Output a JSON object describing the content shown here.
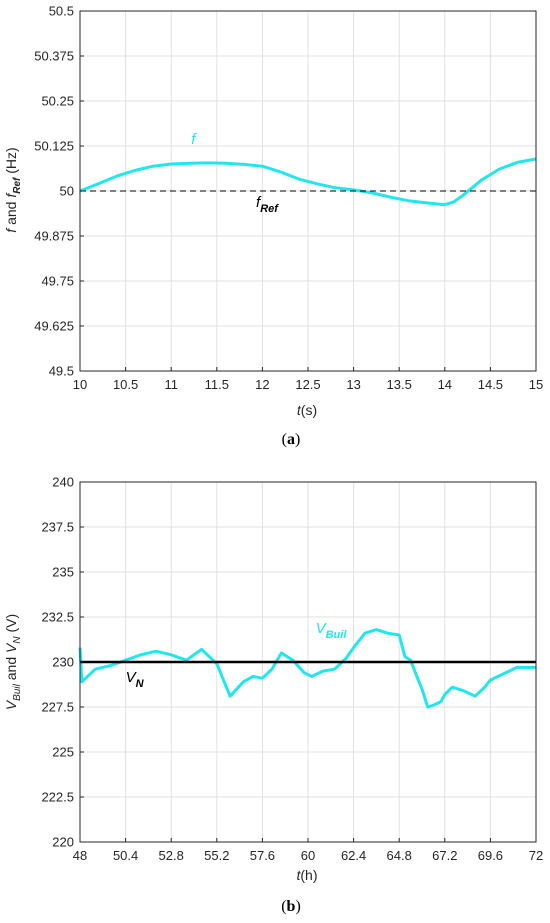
{
  "colors": {
    "cyan": "#22e6ee",
    "black": "#000000",
    "grid": "#e0e0e0",
    "axis": "#262626"
  },
  "chart_data": [
    {
      "type": "line",
      "caption": {
        "open": "(",
        "letter": "a",
        "close": ")"
      },
      "xlabel": {
        "var": "t",
        "unit": "(s)"
      },
      "ylabel": {
        "p1": "f",
        "p2": " and ",
        "p3": "f",
        "sub": "Ref",
        "p4": " (Hz)"
      },
      "xlim": [
        10,
        15
      ],
      "ylim": [
        49.5,
        50.5
      ],
      "xticks": [
        10,
        10.5,
        11,
        11.5,
        12,
        12.5,
        13,
        13.5,
        14,
        14.5,
        15
      ],
      "xtick_labels": [
        "10",
        "10.5",
        "11",
        "11.5",
        "12",
        "12.5",
        "13",
        "13.5",
        "14",
        "14.5",
        "15"
      ],
      "yticks": [
        49.5,
        49.625,
        49.75,
        49.875,
        50,
        50.125,
        50.25,
        50.375,
        50.5
      ],
      "ytick_labels": [
        "49.5",
        "49.625",
        "49.75",
        "49.875",
        "50",
        "50.125",
        "50.25",
        "50.375",
        "50.5"
      ],
      "grid": true,
      "series": [
        {
          "name": "f",
          "color": "#22e6ee",
          "style": "solid",
          "x": [
            10,
            10.2,
            10.4,
            10.6,
            10.8,
            11,
            11.2,
            11.4,
            11.6,
            11.8,
            12,
            12.2,
            12.4,
            12.6,
            12.8,
            13,
            13.2,
            13.4,
            13.6,
            13.8,
            14,
            14.1,
            14.2,
            14.4,
            14.6,
            14.8,
            15
          ],
          "y": [
            50.0,
            50.02,
            50.041,
            50.057,
            50.069,
            50.075,
            50.077,
            50.078,
            50.077,
            50.074,
            50.069,
            50.053,
            50.033,
            50.02,
            50.009,
            50.003,
            49.995,
            49.983,
            49.973,
            49.967,
            49.962,
            49.97,
            49.988,
            50.03,
            50.061,
            50.08,
            50.089
          ]
        },
        {
          "name": "fRef",
          "color": "#000000",
          "style": "dashed",
          "x": [
            10,
            15
          ],
          "y": [
            50,
            50
          ]
        }
      ],
      "annotations": [
        {
          "text": "f",
          "x": 11.22,
          "y": 50.13,
          "color": "#22e6ee"
        },
        {
          "text": "f",
          "sub": "Ref",
          "x": 11.93,
          "y": 49.955,
          "color": "#000000"
        }
      ]
    },
    {
      "type": "line",
      "caption": {
        "open": "(",
        "letter": "b",
        "close": ")"
      },
      "xlabel": {
        "var": "t",
        "unit": "(h)"
      },
      "ylabel": {
        "p1": "V",
        "sub1": "Buil",
        "p2": " and ",
        "p3": "V",
        "sub2": "N",
        "p4": " (V)"
      },
      "xlim": [
        48,
        72
      ],
      "ylim": [
        220,
        240
      ],
      "xticks": [
        48,
        50.4,
        52.8,
        55.2,
        57.6,
        60,
        62.4,
        64.8,
        67.2,
        69.6,
        72
      ],
      "xtick_labels": [
        "48",
        "50.4",
        "52.8",
        "55.2",
        "57.6",
        "60",
        "62.4",
        "64.8",
        "67.2",
        "69.6",
        "72"
      ],
      "yticks": [
        220,
        222.5,
        225,
        227.5,
        230,
        232.5,
        235,
        237.5,
        240
      ],
      "ytick_labels": [
        "220",
        "222.5",
        "225",
        "227.5",
        "230",
        "232.5",
        "235",
        "237.5",
        "240"
      ],
      "grid": true,
      "series": [
        {
          "name": "VBuil",
          "color": "#22e6ee",
          "style": "solid",
          "x": [
            48,
            48.1,
            48.3,
            48.8,
            49.6,
            50.4,
            51.2,
            52.0,
            52.8,
            53.6,
            54.4,
            55.2,
            55.9,
            56.6,
            57.1,
            57.6,
            58.1,
            58.6,
            59.2,
            59.8,
            60.2,
            60.8,
            61.4,
            62.0,
            62.4,
            63.0,
            63.6,
            64.2,
            64.8,
            65.1,
            65.4,
            65.8,
            66.0,
            66.3,
            66.6,
            67.0,
            67.2,
            67.6,
            68.2,
            68.8,
            69.3,
            69.6,
            70.2,
            70.6,
            71.0,
            71.4,
            72
          ],
          "y": [
            230.8,
            228.9,
            229.1,
            229.6,
            229.8,
            230.1,
            230.4,
            230.6,
            230.4,
            230.1,
            230.7,
            229.9,
            228.1,
            228.9,
            229.2,
            229.1,
            229.6,
            230.5,
            230.1,
            229.4,
            229.2,
            229.5,
            229.6,
            230.2,
            230.8,
            231.6,
            231.8,
            231.6,
            231.5,
            230.3,
            230.1,
            229.0,
            228.5,
            227.5,
            227.6,
            227.8,
            228.2,
            228.6,
            228.4,
            228.1,
            228.6,
            229.0,
            229.3,
            229.5,
            229.7,
            229.7,
            229.7
          ]
        },
        {
          "name": "VN",
          "color": "#000000",
          "style": "solid",
          "x": [
            48,
            72
          ],
          "y": [
            230,
            230
          ]
        }
      ],
      "annotations": [
        {
          "text": "V",
          "sub": "Buil",
          "x": 60.4,
          "y": 231.6,
          "color": "#22e6ee"
        },
        {
          "text": "V",
          "sub": "N",
          "x": 50.4,
          "y": 228.9,
          "color": "#000000"
        }
      ]
    }
  ]
}
